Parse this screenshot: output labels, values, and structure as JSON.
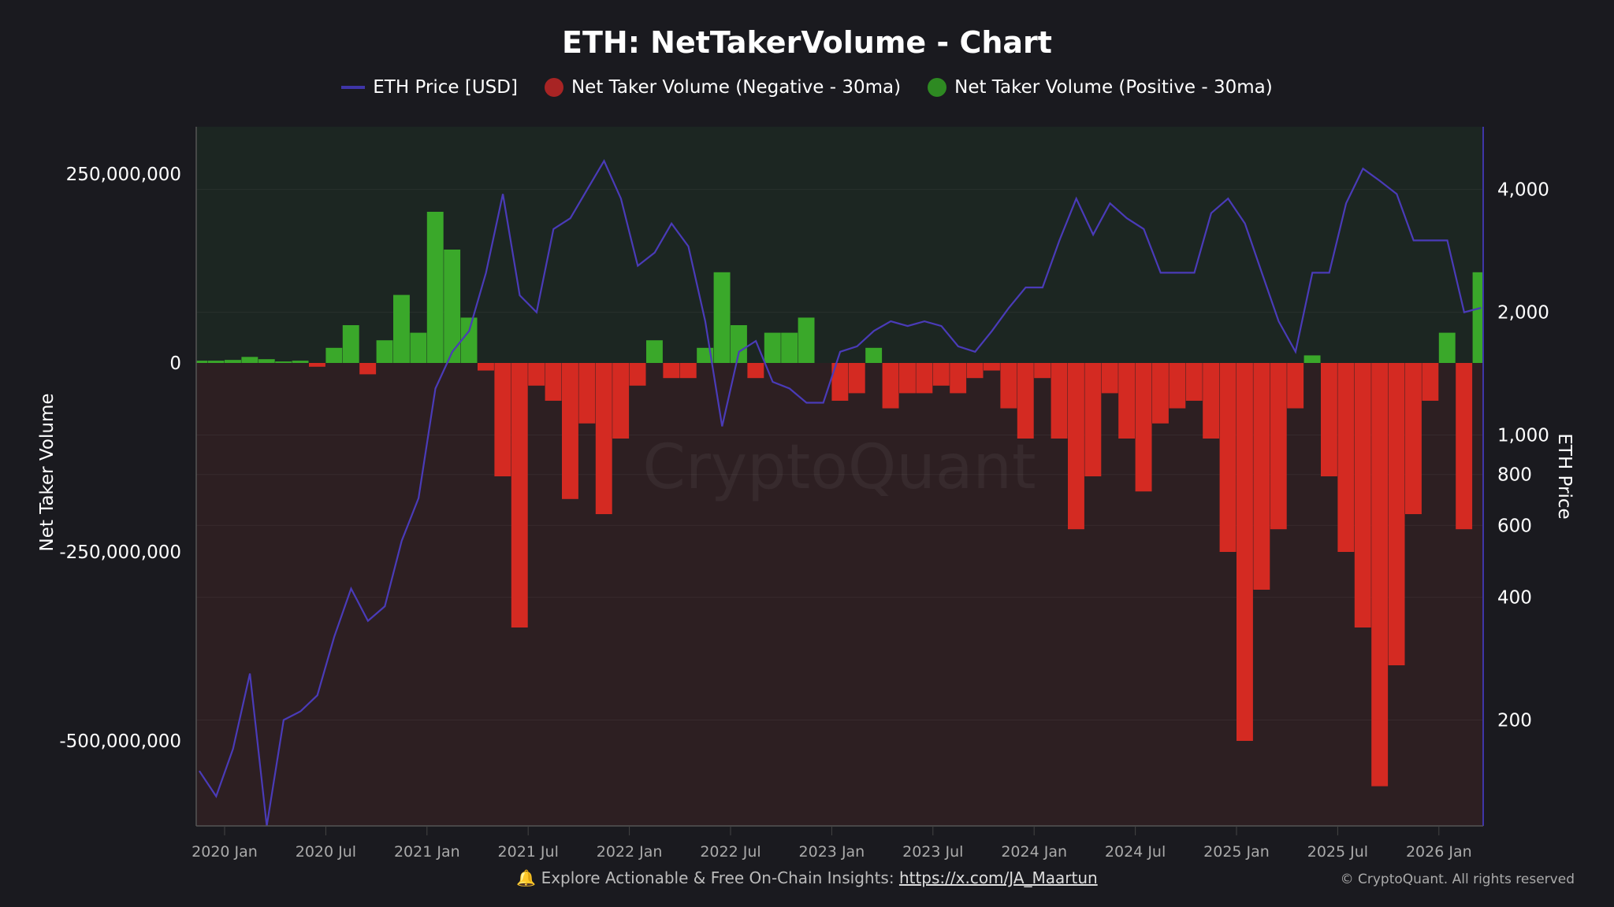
{
  "chart_data": {
    "type": "bar+line",
    "title": "ETH: NetTakerVolume - Chart",
    "legend": [
      {
        "name": "ETH Price [USD]",
        "color": "#3f35a8",
        "shape": "line"
      },
      {
        "name": "Net Taker Volume (Negative - 30ma)",
        "color": "#a82424",
        "shape": "dot"
      },
      {
        "name": "Net Taker Volume (Positive - 30ma)",
        "color": "#2e8a22",
        "shape": "dot"
      }
    ],
    "legend_placement": "top-center",
    "ylabel_left": "Net Taker Volume",
    "ylabel_right": "ETH Price",
    "ylim_left": [
      -612500000,
      312500000
    ],
    "ylim_right": [
      110,
      5700
    ],
    "right_scale": "log",
    "yticks_left": [
      {
        "value": 250000000,
        "label": "250,000,000"
      },
      {
        "value": 0,
        "label": "0"
      },
      {
        "value": -250000000,
        "label": "-250,000,000"
      },
      {
        "value": -500000000,
        "label": "-500,000,000"
      }
    ],
    "yticks_right": [
      {
        "value": 4000,
        "label": "4,000"
      },
      {
        "value": 2000,
        "label": "2,000"
      },
      {
        "value": 1000,
        "label": "1,000"
      },
      {
        "value": 800,
        "label": "800"
      },
      {
        "value": 600,
        "label": "600"
      },
      {
        "value": 400,
        "label": "400"
      },
      {
        "value": 200,
        "label": "200"
      }
    ],
    "xticks": [
      {
        "date": "2020-01",
        "label": "2020 Jan"
      },
      {
        "date": "2020-07",
        "label": "2020 Jul"
      },
      {
        "date": "2021-01",
        "label": "2021 Jan"
      },
      {
        "date": "2021-07",
        "label": "2021 Jul"
      },
      {
        "date": "2022-01",
        "label": "2022 Jan"
      },
      {
        "date": "2022-07",
        "label": "2022 Jul"
      },
      {
        "date": "2023-01",
        "label": "2023 Jan"
      },
      {
        "date": "2023-07",
        "label": "2023 Jul"
      },
      {
        "date": "2024-01",
        "label": "2024 Jan"
      },
      {
        "date": "2024-07",
        "label": "2024 Jul"
      },
      {
        "date": "2025-01",
        "label": "2025 Jan"
      },
      {
        "date": "2025-07",
        "label": "2025 Jul"
      },
      {
        "date": "2026-01",
        "label": "2026 Jan"
      }
    ],
    "grid": true,
    "colors": {
      "positive": "#3aa82a",
      "negative": "#d42a22",
      "price": "#4a3bb8",
      "bg_positive": "#1c2622",
      "bg_negative": "#2d1f22"
    },
    "dates": [
      "2019-11",
      "2019-12",
      "2020-01",
      "2020-02",
      "2020-03",
      "2020-04",
      "2020-05",
      "2020-06",
      "2020-07",
      "2020-08",
      "2020-09",
      "2020-10",
      "2020-11",
      "2020-12",
      "2021-01",
      "2021-02",
      "2021-03",
      "2021-04",
      "2021-05",
      "2021-06",
      "2021-07",
      "2021-08",
      "2021-09",
      "2021-10",
      "2021-11",
      "2021-12",
      "2022-01",
      "2022-02",
      "2022-03",
      "2022-04",
      "2022-05",
      "2022-06",
      "2022-07",
      "2022-08",
      "2022-09",
      "2022-10",
      "2022-11",
      "2022-12",
      "2023-01",
      "2023-02",
      "2023-03",
      "2023-04",
      "2023-05",
      "2023-06",
      "2023-07",
      "2023-08",
      "2023-09",
      "2023-10",
      "2023-11",
      "2023-12",
      "2024-01",
      "2024-02",
      "2024-03",
      "2024-04",
      "2024-05",
      "2024-06",
      "2024-07",
      "2024-08",
      "2024-09",
      "2024-10",
      "2024-11",
      "2024-12",
      "2025-01",
      "2025-02",
      "2025-03",
      "2025-04",
      "2025-05",
      "2025-06",
      "2025-07",
      "2025-08",
      "2025-09",
      "2025-10",
      "2025-11",
      "2025-12",
      "2026-01",
      "2026-02",
      "2026-03"
    ],
    "series": [
      {
        "name": "ETH Price [USD]",
        "values": [
          150,
          130,
          170,
          260,
          110,
          200,
          210,
          230,
          320,
          420,
          350,
          380,
          550,
          700,
          1300,
          1600,
          1800,
          2500,
          3900,
          2200,
          2000,
          3200,
          3400,
          4000,
          4700,
          3800,
          2600,
          2800,
          3300,
          2900,
          1900,
          1050,
          1600,
          1700,
          1350,
          1300,
          1200,
          1200,
          1600,
          1650,
          1800,
          1900,
          1850,
          1900,
          1850,
          1650,
          1600,
          1800,
          2050,
          2300,
          2300,
          3000,
          3800,
          3100,
          3700,
          3400,
          3200,
          2500,
          2500,
          2500,
          3500,
          3800,
          3300,
          2500,
          1900,
          1600,
          2500,
          2500,
          3700,
          4500,
          4200,
          3900,
          3000,
          3000,
          3000,
          2000,
          2050
        ]
      },
      {
        "name": "Net Taker Volume (30ma)",
        "values": [
          3000000,
          3000000,
          4000000,
          8000000,
          5000000,
          2000000,
          3000000,
          -5000000,
          20000000,
          50000000,
          -15000000,
          30000000,
          90000000,
          40000000,
          200000000,
          150000000,
          60000000,
          -10000000,
          -150000000,
          -350000000,
          -30000000,
          -50000000,
          -180000000,
          -80000000,
          -200000000,
          -100000000,
          -30000000,
          30000000,
          -20000000,
          -20000000,
          20000000,
          120000000,
          50000000,
          -20000000,
          40000000,
          40000000,
          60000000,
          0,
          -50000000,
          -40000000,
          20000000,
          -60000000,
          -40000000,
          -40000000,
          -30000000,
          -40000000,
          -20000000,
          -10000000,
          -60000000,
          -100000000,
          -20000000,
          -100000000,
          -220000000,
          -150000000,
          -40000000,
          -100000000,
          -170000000,
          -80000000,
          -60000000,
          -50000000,
          -100000000,
          -250000000,
          -500000000,
          -300000000,
          -220000000,
          -60000000,
          10000000,
          -150000000,
          -250000000,
          -350000000,
          -560000000,
          -400000000,
          -200000000,
          -50000000,
          40000000,
          -220000000,
          120000000
        ]
      }
    ],
    "watermark": "CryptoQuant"
  },
  "footer": {
    "bell_icon": "bell-icon",
    "text": "Explore Actionable & Free On-Chain Insights: ",
    "link": "https://x.com/JA_Maartun",
    "copyright": "© CryptoQuant. All rights reserved"
  }
}
